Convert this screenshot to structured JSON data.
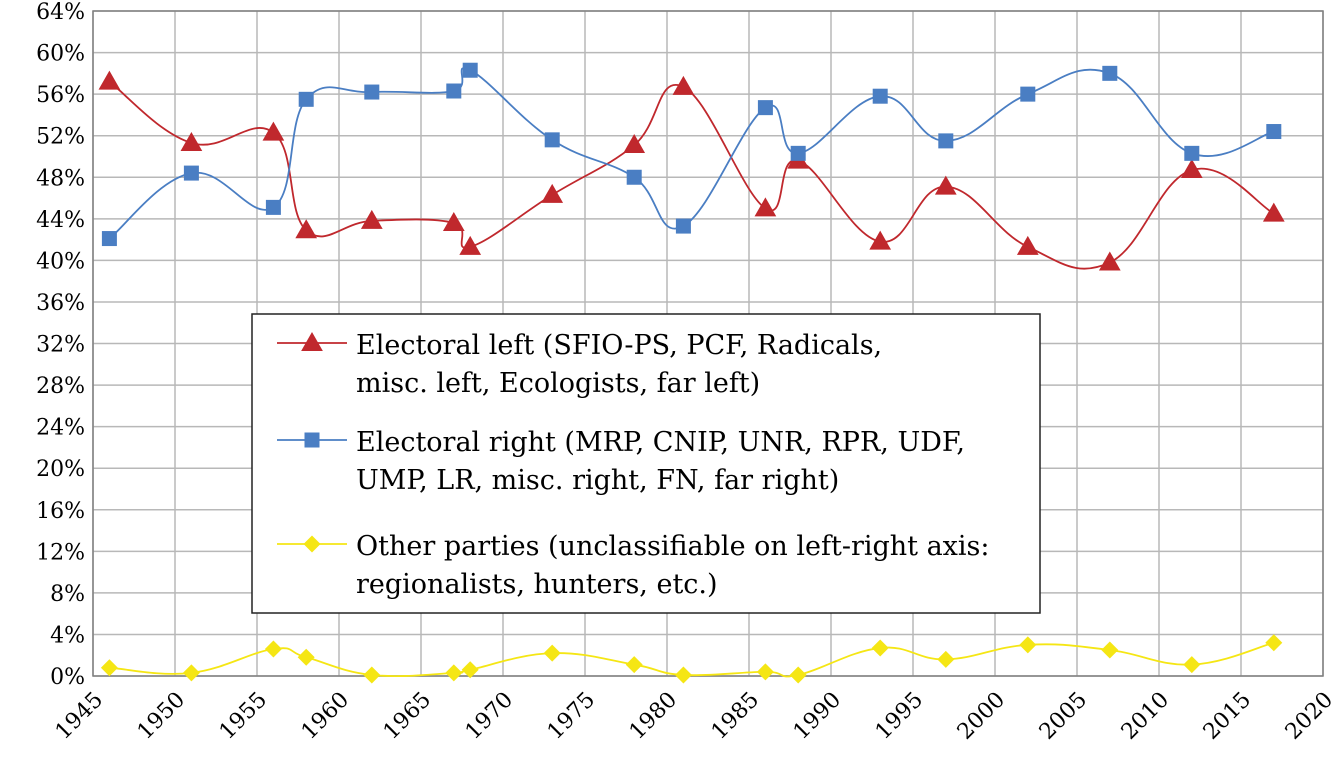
{
  "chart_data": {
    "type": "line",
    "title": "",
    "xlabel": "",
    "ylabel": "",
    "xlim": [
      1945,
      2020
    ],
    "ylim": [
      0,
      64
    ],
    "x_ticks": [
      1945,
      1950,
      1955,
      1960,
      1965,
      1970,
      1975,
      1980,
      1985,
      1990,
      1995,
      2000,
      2005,
      2010,
      2015,
      2020
    ],
    "y_ticks": [
      0,
      4,
      8,
      12,
      16,
      20,
      24,
      28,
      32,
      36,
      40,
      44,
      48,
      52,
      56,
      60,
      64
    ],
    "y_tick_labels": [
      "0%",
      "4%",
      "8%",
      "12%",
      "16%",
      "20%",
      "24%",
      "28%",
      "32%",
      "36%",
      "40%",
      "44%",
      "48%",
      "52%",
      "56%",
      "60%",
      "64%"
    ],
    "grid": true,
    "smooth": true,
    "legend_position": "center-left",
    "series": [
      {
        "name_lines": [
          "Electoral left (SFIO-PS, PCF, Radicals,",
          "misc. left, Ecologists, far left)"
        ],
        "color": "#c0282d",
        "marker": "triangle",
        "x": [
          1946,
          1951,
          1956,
          1958,
          1962,
          1967,
          1968,
          1973,
          1978,
          1981,
          1986,
          1988,
          1993,
          1997,
          2002,
          2007,
          2012,
          2017
        ],
        "values": [
          57.2,
          51.3,
          52.3,
          42.9,
          43.8,
          43.6,
          41.3,
          46.3,
          51.1,
          56.7,
          45.0,
          49.6,
          41.8,
          47.1,
          41.3,
          39.8,
          48.7,
          44.5
        ]
      },
      {
        "name_lines": [
          "Electoral right (MRP, CNIP, UNR, RPR, UDF,",
          "UMP, LR, misc. right, FN, far right)"
        ],
        "color": "#4a7ec3",
        "marker": "square",
        "x": [
          1946,
          1951,
          1956,
          1958,
          1962,
          1967,
          1968,
          1973,
          1978,
          1981,
          1986,
          1988,
          1993,
          1997,
          2002,
          2007,
          2012,
          2017
        ],
        "values": [
          42.1,
          48.4,
          45.1,
          55.5,
          56.2,
          56.3,
          58.3,
          51.6,
          48.0,
          43.3,
          54.7,
          50.3,
          55.8,
          51.5,
          56.0,
          58.0,
          50.3,
          52.4
        ]
      },
      {
        "name_lines": [
          "Other parties (unclassifiable on left-right axis:",
          "regionalists, hunters, etc.)"
        ],
        "color": "#f5e614",
        "marker": "diamond",
        "x": [
          1946,
          1951,
          1956,
          1958,
          1962,
          1967,
          1968,
          1973,
          1978,
          1981,
          1986,
          1988,
          1993,
          1997,
          2002,
          2007,
          2012,
          2017
        ],
        "values": [
          0.8,
          0.3,
          2.6,
          1.8,
          0.1,
          0.3,
          0.6,
          2.2,
          1.1,
          0.1,
          0.4,
          0.1,
          2.7,
          1.6,
          3.0,
          2.5,
          1.1,
          3.2
        ]
      }
    ]
  }
}
